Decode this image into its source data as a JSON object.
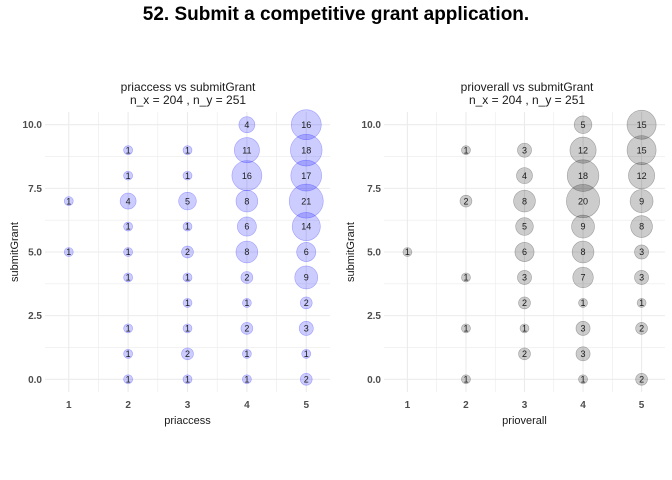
{
  "title": "52. Submit a competitive grant application.",
  "colors": {
    "blue_fill": "#0000ff",
    "gray_fill": "#000000",
    "grid": "#ebebeb"
  },
  "chart_data": [
    {
      "type": "scatter",
      "title_line1": "priaccess vs submitGrant",
      "title_line2": "n_x = 204 , n_y = 251",
      "xlabel": "priaccess",
      "ylabel": "submitGrant",
      "xlim": [
        0.6,
        5.4
      ],
      "ylim": [
        -0.5,
        10.5
      ],
      "xticks": [
        "1",
        "2",
        "3",
        "4",
        "5"
      ],
      "yticks": [
        "0.0",
        "2.5",
        "5.0",
        "7.5",
        "10.0"
      ],
      "color": "#0000ff",
      "points": [
        {
          "x": 4,
          "y": 10,
          "n": 4
        },
        {
          "x": 5,
          "y": 10,
          "n": 16
        },
        {
          "x": 2,
          "y": 9,
          "n": 1
        },
        {
          "x": 3,
          "y": 9,
          "n": 1
        },
        {
          "x": 4,
          "y": 9,
          "n": 11
        },
        {
          "x": 5,
          "y": 9,
          "n": 18
        },
        {
          "x": 2,
          "y": 8,
          "n": 1
        },
        {
          "x": 3,
          "y": 8,
          "n": 1
        },
        {
          "x": 4,
          "y": 8,
          "n": 16
        },
        {
          "x": 5,
          "y": 8,
          "n": 17
        },
        {
          "x": 1,
          "y": 7,
          "n": 1
        },
        {
          "x": 2,
          "y": 7,
          "n": 4
        },
        {
          "x": 3,
          "y": 7,
          "n": 5
        },
        {
          "x": 4,
          "y": 7,
          "n": 8
        },
        {
          "x": 5,
          "y": 7,
          "n": 21
        },
        {
          "x": 2,
          "y": 6,
          "n": 1
        },
        {
          "x": 3,
          "y": 6,
          "n": 1
        },
        {
          "x": 4,
          "y": 6,
          "n": 6
        },
        {
          "x": 5,
          "y": 6,
          "n": 14
        },
        {
          "x": 1,
          "y": 5,
          "n": 1
        },
        {
          "x": 2,
          "y": 5,
          "n": 1
        },
        {
          "x": 3,
          "y": 5,
          "n": 2
        },
        {
          "x": 4,
          "y": 5,
          "n": 8
        },
        {
          "x": 5,
          "y": 5,
          "n": 6
        },
        {
          "x": 2,
          "y": 4,
          "n": 1
        },
        {
          "x": 3,
          "y": 4,
          "n": 1
        },
        {
          "x": 4,
          "y": 4,
          "n": 2
        },
        {
          "x": 5,
          "y": 4,
          "n": 9
        },
        {
          "x": 3,
          "y": 3,
          "n": 1
        },
        {
          "x": 4,
          "y": 3,
          "n": 1
        },
        {
          "x": 5,
          "y": 3,
          "n": 2
        },
        {
          "x": 2,
          "y": 2,
          "n": 1
        },
        {
          "x": 3,
          "y": 2,
          "n": 1
        },
        {
          "x": 4,
          "y": 2,
          "n": 2
        },
        {
          "x": 5,
          "y": 2,
          "n": 3
        },
        {
          "x": 2,
          "y": 1,
          "n": 1
        },
        {
          "x": 3,
          "y": 1,
          "n": 2
        },
        {
          "x": 4,
          "y": 1,
          "n": 1
        },
        {
          "x": 5,
          "y": 1,
          "n": 1
        },
        {
          "x": 2,
          "y": 0,
          "n": 1
        },
        {
          "x": 3,
          "y": 0,
          "n": 1
        },
        {
          "x": 4,
          "y": 0,
          "n": 1
        },
        {
          "x": 5,
          "y": 0,
          "n": 2
        }
      ]
    },
    {
      "type": "scatter",
      "title_line1": "prioverall vs submitGrant",
      "title_line2": "n_x = 204 , n_y = 251",
      "xlabel": "prioverall",
      "ylabel": "submitGrant",
      "xlim": [
        0.6,
        5.4
      ],
      "ylim": [
        -0.5,
        10.5
      ],
      "xticks": [
        "1",
        "2",
        "3",
        "4",
        "5"
      ],
      "yticks": [
        "0.0",
        "2.5",
        "5.0",
        "7.5",
        "10.0"
      ],
      "color": "#000000",
      "points": [
        {
          "x": 4,
          "y": 10,
          "n": 5
        },
        {
          "x": 5,
          "y": 10,
          "n": 15
        },
        {
          "x": 2,
          "y": 9,
          "n": 1
        },
        {
          "x": 3,
          "y": 9,
          "n": 3
        },
        {
          "x": 4,
          "y": 9,
          "n": 12
        },
        {
          "x": 5,
          "y": 9,
          "n": 15
        },
        {
          "x": 3,
          "y": 8,
          "n": 4
        },
        {
          "x": 4,
          "y": 8,
          "n": 18
        },
        {
          "x": 5,
          "y": 8,
          "n": 12
        },
        {
          "x": 2,
          "y": 7,
          "n": 2
        },
        {
          "x": 3,
          "y": 7,
          "n": 8
        },
        {
          "x": 4,
          "y": 7,
          "n": 20
        },
        {
          "x": 5,
          "y": 7,
          "n": 9
        },
        {
          "x": 3,
          "y": 6,
          "n": 5
        },
        {
          "x": 4,
          "y": 6,
          "n": 9
        },
        {
          "x": 5,
          "y": 6,
          "n": 8
        },
        {
          "x": 1,
          "y": 5,
          "n": 1
        },
        {
          "x": 3,
          "y": 5,
          "n": 6
        },
        {
          "x": 4,
          "y": 5,
          "n": 8
        },
        {
          "x": 5,
          "y": 5,
          "n": 3
        },
        {
          "x": 2,
          "y": 4,
          "n": 1
        },
        {
          "x": 3,
          "y": 4,
          "n": 3
        },
        {
          "x": 4,
          "y": 4,
          "n": 7
        },
        {
          "x": 5,
          "y": 4,
          "n": 3
        },
        {
          "x": 3,
          "y": 3,
          "n": 2
        },
        {
          "x": 4,
          "y": 3,
          "n": 1
        },
        {
          "x": 5,
          "y": 3,
          "n": 1
        },
        {
          "x": 2,
          "y": 2,
          "n": 1
        },
        {
          "x": 3,
          "y": 2,
          "n": 1
        },
        {
          "x": 4,
          "y": 2,
          "n": 3
        },
        {
          "x": 5,
          "y": 2,
          "n": 2
        },
        {
          "x": 3,
          "y": 1,
          "n": 2
        },
        {
          "x": 4,
          "y": 1,
          "n": 3
        },
        {
          "x": 2,
          "y": 0,
          "n": 1
        },
        {
          "x": 4,
          "y": 0,
          "n": 1
        },
        {
          "x": 5,
          "y": 0,
          "n": 2
        }
      ]
    }
  ]
}
